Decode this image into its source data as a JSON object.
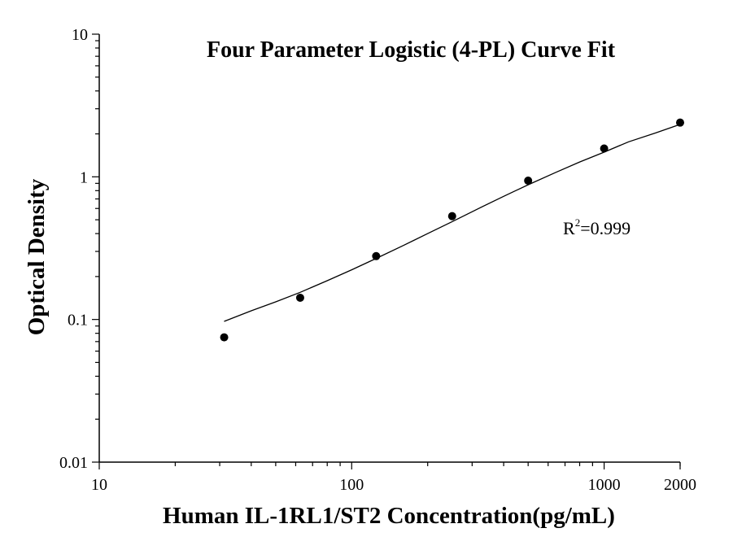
{
  "chart_data": {
    "type": "scatter",
    "title": "Four Parameter Logistic (4-PL) Curve Fit",
    "xlabel": "Human IL-1RL1/ST2 Concentration(pg/mL)",
    "ylabel": "Optical Density",
    "xscale": "log",
    "yscale": "log",
    "xlim": [
      10,
      2000
    ],
    "ylim": [
      0.01,
      10
    ],
    "x_ticks": [
      10,
      100,
      1000,
      2000
    ],
    "x_tick_labels": [
      "10",
      "100",
      "1000",
      "2000"
    ],
    "y_ticks": [
      0.01,
      0.1,
      1,
      10
    ],
    "y_tick_labels": [
      "0.01",
      "0.1",
      "1",
      "10"
    ],
    "grid": false,
    "legend": "none",
    "series": [
      {
        "x": [
          31.25,
          62.5,
          125,
          250,
          500,
          1000,
          2000
        ],
        "y": [
          0.075,
          0.142,
          0.278,
          0.53,
          0.94,
          1.58,
          2.4
        ]
      }
    ],
    "fit_curve": {
      "model": "4-PL",
      "x_range": [
        31.25,
        2000
      ],
      "points": [
        [
          31.25,
          0.097
        ],
        [
          40,
          0.115
        ],
        [
          50,
          0.133
        ],
        [
          62.5,
          0.155
        ],
        [
          80,
          0.187
        ],
        [
          100,
          0.223
        ],
        [
          125,
          0.268
        ],
        [
          160,
          0.33
        ],
        [
          200,
          0.4
        ],
        [
          250,
          0.485
        ],
        [
          320,
          0.603
        ],
        [
          400,
          0.73
        ],
        [
          500,
          0.88
        ],
        [
          640,
          1.07
        ],
        [
          800,
          1.27
        ],
        [
          1000,
          1.49
        ],
        [
          1250,
          1.76
        ],
        [
          1600,
          2.03
        ],
        [
          2000,
          2.33
        ]
      ]
    },
    "annotation": {
      "base": "R",
      "superscript": "2",
      "value_text": "=0.999"
    }
  },
  "colors": {
    "axes": "#000000",
    "points": "#000000",
    "curve": "#000000",
    "background": "#ffffff"
  }
}
